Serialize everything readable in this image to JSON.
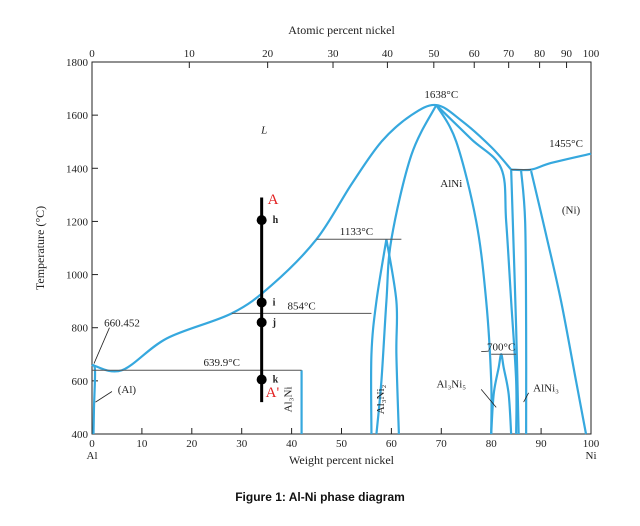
{
  "caption": "Figure 1: Al-Ni phase diagram",
  "chart_data": {
    "type": "phase-diagram",
    "title": "",
    "xlabel": "Weight percent nickel",
    "x2label": "Atomic percent nickel",
    "ylabel": "Temperature (°C)",
    "xlim": [
      0,
      100
    ],
    "ylim": [
      400,
      1800
    ],
    "x_ticks": [
      0,
      10,
      20,
      30,
      40,
      50,
      60,
      70,
      80,
      90,
      100
    ],
    "y_ticks": [
      400,
      600,
      800,
      1000,
      1200,
      1400,
      1600,
      1800
    ],
    "x_end_labels": {
      "left": "Al",
      "right": "Ni"
    },
    "top_ticks": [
      {
        "at": 0,
        "wt": 0
      },
      {
        "at": 10,
        "wt": 19.5
      },
      {
        "at": 20,
        "wt": 35.2
      },
      {
        "at": 30,
        "wt": 48.3
      },
      {
        "at": 40,
        "wt": 59.2
      },
      {
        "at": 50,
        "wt": 68.5
      },
      {
        "at": 60,
        "wt": 76.6
      },
      {
        "at": 70,
        "wt": 83.5
      },
      {
        "at": 80,
        "wt": 89.7
      },
      {
        "at": 90,
        "wt": 95.1
      },
      {
        "at": 100,
        "wt": 100
      }
    ],
    "annotations": [
      {
        "text": "1638°C",
        "x": 70,
        "y": 1665
      },
      {
        "text": "1455°C",
        "x": 95,
        "y": 1480
      },
      {
        "text": "1133°C",
        "x": 53,
        "y": 1148
      },
      {
        "text": "854°C",
        "x": 42,
        "y": 868
      },
      {
        "text": "700°C",
        "x": 82,
        "y": 715
      },
      {
        "text": "660.452",
        "x": 6,
        "y": 805
      },
      {
        "text": "639.9°C",
        "x": 26,
        "y": 655
      }
    ],
    "phase_labels": [
      {
        "text": "L",
        "x": 34.5,
        "y": 1530
      },
      {
        "text": "AlNi",
        "x": 72,
        "y": 1330
      },
      {
        "text": "(Ni)",
        "x": 96,
        "y": 1230
      },
      {
        "text": "(Al)",
        "x": 7,
        "y": 555
      },
      {
        "text": "Al3Ni",
        "x": 40,
        "y": 530,
        "rotate": true
      },
      {
        "text": "Al3Ni2",
        "x": 58.5,
        "y": 530,
        "rotate": true
      },
      {
        "text": "Al3Ni5",
        "x": 72,
        "y": 575
      },
      {
        "text": "AlNi3",
        "x": 91,
        "y": 560
      }
    ],
    "series": [
      {
        "points": [
          [
            0,
            660
          ],
          [
            6,
            640
          ],
          [
            15,
            760
          ],
          [
            28,
            854
          ],
          [
            36,
            960
          ],
          [
            45,
            1133
          ],
          [
            52,
            1340
          ],
          [
            58,
            1500
          ],
          [
            64,
            1600
          ],
          [
            69,
            1638
          ],
          [
            74,
            1580
          ],
          [
            80,
            1480
          ],
          [
            84,
            1395
          ]
        ]
      },
      {
        "points": [
          [
            84,
            1395
          ],
          [
            88,
            1395
          ],
          [
            92,
            1420
          ],
          [
            100,
            1455
          ]
        ]
      },
      {
        "points": [
          [
            0,
            660
          ],
          [
            0.6,
            640
          ],
          [
            0.4,
            500
          ],
          [
            0.3,
            400
          ]
        ]
      },
      {
        "points": [
          [
            86,
            1390
          ],
          [
            86.8,
            1200
          ],
          [
            87,
            800
          ],
          [
            87,
            400
          ]
        ]
      },
      {
        "points": [
          [
            88,
            1390
          ],
          [
            91,
            1150
          ],
          [
            94,
            900
          ],
          [
            97,
            600
          ],
          [
            99,
            400
          ]
        ]
      },
      {
        "points": [
          [
            69,
            1638
          ],
          [
            64,
            1450
          ],
          [
            60,
            1133
          ],
          [
            59,
            900
          ],
          [
            58,
            600
          ],
          [
            57,
            400
          ]
        ]
      },
      {
        "points": [
          [
            69,
            1638
          ],
          [
            73,
            1500
          ],
          [
            77,
            1200
          ],
          [
            79,
            900
          ],
          [
            80,
            600
          ],
          [
            80,
            400
          ]
        ]
      },
      {
        "points": [
          [
            69,
            1638
          ],
          [
            76,
            1510
          ],
          [
            82,
            1400
          ],
          [
            83,
            1200
          ],
          [
            84,
            900
          ],
          [
            85,
            600
          ],
          [
            85,
            400
          ]
        ]
      },
      {
        "points": [
          [
            84,
            1395
          ],
          [
            84.5,
            1100
          ],
          [
            85,
            800
          ],
          [
            85.5,
            400
          ]
        ]
      },
      {
        "points": [
          [
            56,
            400
          ],
          [
            56,
            700
          ],
          [
            57,
            900
          ],
          [
            59,
            1133
          ]
        ]
      },
      {
        "points": [
          [
            59,
            1133
          ],
          [
            61,
            900
          ],
          [
            61,
            700
          ],
          [
            61.5,
            400
          ]
        ]
      },
      {
        "points": [
          [
            80,
            400
          ],
          [
            80.5,
            550
          ],
          [
            81.5,
            650
          ],
          [
            82,
            700
          ],
          [
            82.5,
            650
          ],
          [
            83.5,
            550
          ],
          [
            84,
            400
          ]
        ]
      },
      {
        "points": [
          [
            42,
            400
          ],
          [
            42,
            640
          ]
        ]
      }
    ],
    "isotherms": [
      {
        "y": 1133,
        "x": [
          45,
          62
        ]
      },
      {
        "y": 854,
        "x": [
          28,
          56
        ]
      },
      {
        "y": 640,
        "x": [
          0,
          42
        ]
      },
      {
        "y": 700,
        "x": [
          80,
          85
        ]
      },
      {
        "y": 1395,
        "x": [
          84,
          88
        ]
      }
    ],
    "composition_line": {
      "x": 34,
      "ymin": 520,
      "ymax": 1290
    },
    "points": [
      {
        "label": "h",
        "x": 34,
        "y": 1205
      },
      {
        "label": "i",
        "x": 34,
        "y": 895
      },
      {
        "label": "j",
        "x": 34,
        "y": 820
      },
      {
        "label": "k",
        "x": 34,
        "y": 605
      }
    ],
    "markers": [
      {
        "label": "A",
        "x": 35.2,
        "y": 1265
      },
      {
        "label": "A'",
        "x": 34.8,
        "y": 540
      }
    ],
    "colors": {
      "curve": "#36a8de",
      "isotherm": "#555555",
      "marker": "#e22222",
      "axis": "#222222"
    }
  }
}
